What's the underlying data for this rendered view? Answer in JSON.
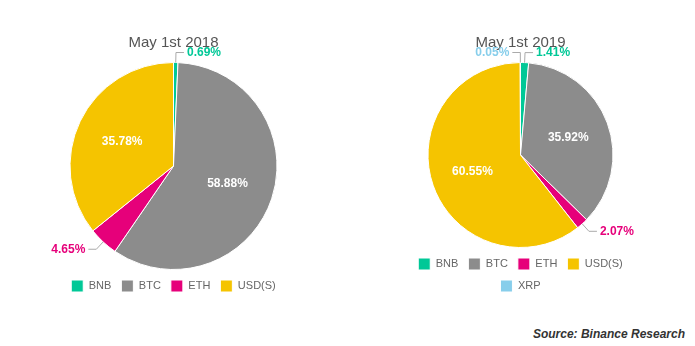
{
  "chart_data": [
    {
      "type": "pie",
      "title": "May 1st 2018",
      "categories": [
        "BNB",
        "BTC",
        "ETH",
        "USD(S)"
      ],
      "values": [
        0.69,
        58.88,
        4.65,
        35.78
      ],
      "value_labels": [
        "0.69%",
        "58.88%",
        "4.65%",
        "35.78%"
      ],
      "colors": [
        "#00c897",
        "#8c8c8c",
        "#e6007a",
        "#f5c400"
      ],
      "data_labels": true,
      "legend": "bottom"
    },
    {
      "type": "pie",
      "title": "May 1st 2019",
      "categories": [
        "BNB",
        "BTC",
        "ETH",
        "USD(S)",
        "XRP"
      ],
      "values": [
        1.41,
        35.92,
        2.07,
        60.55,
        0.05
      ],
      "value_labels": [
        "1.41%",
        "35.92%",
        "2.07%",
        "60.55%",
        "0.05%"
      ],
      "colors": [
        "#00c897",
        "#8c8c8c",
        "#e6007a",
        "#f5c400",
        "#87ceeb"
      ],
      "data_labels": true,
      "legend": "bottom",
      "annotation": "Source: Binance Research"
    }
  ]
}
